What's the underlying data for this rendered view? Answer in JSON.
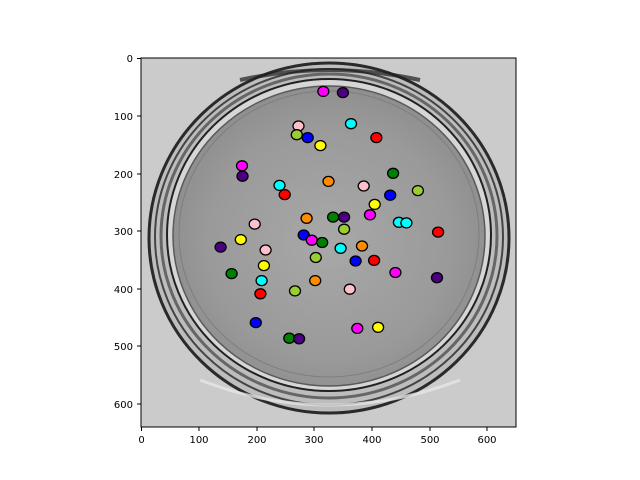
{
  "figure": {
    "x_ticks": [
      "0",
      "100",
      "200",
      "300",
      "400",
      "500",
      "600"
    ],
    "y_ticks": [
      "0",
      "100",
      "200",
      "300",
      "400",
      "500",
      "600"
    ]
  },
  "image": {
    "description_colors": {
      "background": "#c9c9c9",
      "dish_interior": "#9a9a9a",
      "rim_dark": "#1a1a1a"
    },
    "marker_colors": [
      "#ff00ff",
      "#4b0082",
      "#00ffff",
      "#ff0000",
      "#0000ff",
      "#ffff00",
      "#008000",
      "#ff8c00",
      "#9acd32",
      "#ffc0cb"
    ]
  },
  "chart_data": {
    "type": "scatter",
    "title": "",
    "xlabel": "",
    "ylabel": "",
    "xlim": [
      0,
      650
    ],
    "ylim": [
      640,
      0
    ],
    "grid": false,
    "points": [
      {
        "x": 316,
        "y": 58,
        "color": "#ff00ff"
      },
      {
        "x": 350,
        "y": 60,
        "color": "#4b0082"
      },
      {
        "x": 364,
        "y": 114,
        "color": "#00ffff"
      },
      {
        "x": 273,
        "y": 118,
        "color": "#ffc0cb"
      },
      {
        "x": 408,
        "y": 138,
        "color": "#ff0000"
      },
      {
        "x": 270,
        "y": 133,
        "color": "#9acd32"
      },
      {
        "x": 289,
        "y": 138,
        "color": "#0000ff"
      },
      {
        "x": 311,
        "y": 152,
        "color": "#ffff00"
      },
      {
        "x": 175,
        "y": 187,
        "color": "#ff00ff"
      },
      {
        "x": 176,
        "y": 205,
        "color": "#4b0082"
      },
      {
        "x": 437,
        "y": 200,
        "color": "#008000"
      },
      {
        "x": 240,
        "y": 221,
        "color": "#00ffff"
      },
      {
        "x": 325,
        "y": 214,
        "color": "#ff8c00"
      },
      {
        "x": 386,
        "y": 222,
        "color": "#ffc0cb"
      },
      {
        "x": 480,
        "y": 230,
        "color": "#9acd32"
      },
      {
        "x": 249,
        "y": 237,
        "color": "#ff0000"
      },
      {
        "x": 432,
        "y": 238,
        "color": "#0000ff"
      },
      {
        "x": 405,
        "y": 254,
        "color": "#ffff00"
      },
      {
        "x": 397,
        "y": 272,
        "color": "#ff00ff"
      },
      {
        "x": 287,
        "y": 278,
        "color": "#ff8c00"
      },
      {
        "x": 333,
        "y": 276,
        "color": "#008000"
      },
      {
        "x": 352,
        "y": 276,
        "color": "#4b0082"
      },
      {
        "x": 447,
        "y": 285,
        "color": "#00ffff"
      },
      {
        "x": 460,
        "y": 286,
        "color": "#00ffff"
      },
      {
        "x": 197,
        "y": 288,
        "color": "#ffc0cb"
      },
      {
        "x": 352,
        "y": 297,
        "color": "#9acd32"
      },
      {
        "x": 515,
        "y": 302,
        "color": "#ff0000"
      },
      {
        "x": 282,
        "y": 307,
        "color": "#0000ff"
      },
      {
        "x": 296,
        "y": 316,
        "color": "#ff00ff"
      },
      {
        "x": 314,
        "y": 320,
        "color": "#008000"
      },
      {
        "x": 173,
        "y": 315,
        "color": "#ffff00"
      },
      {
        "x": 138,
        "y": 328,
        "color": "#4b0082"
      },
      {
        "x": 346,
        "y": 330,
        "color": "#00ffff"
      },
      {
        "x": 383,
        "y": 326,
        "color": "#ff8c00"
      },
      {
        "x": 216,
        "y": 333,
        "color": "#ffc0cb"
      },
      {
        "x": 303,
        "y": 346,
        "color": "#9acd32"
      },
      {
        "x": 372,
        "y": 352,
        "color": "#0000ff"
      },
      {
        "x": 404,
        "y": 351,
        "color": "#ff0000"
      },
      {
        "x": 213,
        "y": 360,
        "color": "#ffff00"
      },
      {
        "x": 157,
        "y": 374,
        "color": "#008000"
      },
      {
        "x": 441,
        "y": 372,
        "color": "#ff00ff"
      },
      {
        "x": 513,
        "y": 381,
        "color": "#4b0082"
      },
      {
        "x": 209,
        "y": 386,
        "color": "#00ffff"
      },
      {
        "x": 302,
        "y": 386,
        "color": "#ff8c00"
      },
      {
        "x": 362,
        "y": 401,
        "color": "#ffc0cb"
      },
      {
        "x": 267,
        "y": 404,
        "color": "#9acd32"
      },
      {
        "x": 207,
        "y": 409,
        "color": "#ff0000"
      },
      {
        "x": 199,
        "y": 459,
        "color": "#0000ff"
      },
      {
        "x": 411,
        "y": 467,
        "color": "#ffff00"
      },
      {
        "x": 375,
        "y": 469,
        "color": "#ff00ff"
      },
      {
        "x": 257,
        "y": 486,
        "color": "#008000"
      },
      {
        "x": 274,
        "y": 487,
        "color": "#4b0082"
      }
    ]
  }
}
